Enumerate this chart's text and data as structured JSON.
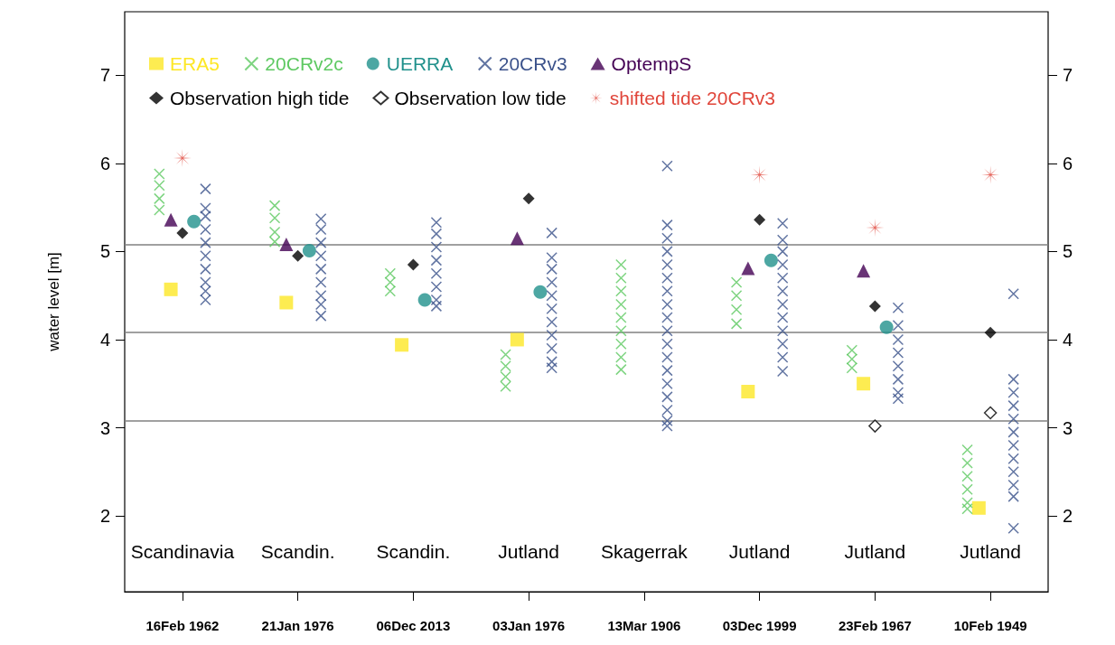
{
  "chart_data": {
    "type": "scatter",
    "ylabel": "water level [m]",
    "categories": [
      "16Feb 1962",
      "21Jan 1976",
      "06Dec 2013",
      "03Jan 1976",
      "13Mar 1906",
      "03Dec 1999",
      "23Feb 1967",
      "10Feb 1949"
    ],
    "ylim": [
      1.14,
      7.72
    ],
    "yticks": [
      2,
      3,
      4,
      5,
      6,
      7
    ],
    "y2lim": [
      1.14,
      7.72
    ],
    "y2ticks": [
      2,
      3,
      4,
      5,
      6,
      7
    ],
    "grid": false,
    "legend": "top left",
    "series": [
      {
        "name": "ERA5",
        "color": "#fde725",
        "marker": "square",
        "values": [
          4.57,
          4.42,
          3.94,
          4.0,
          null,
          3.41,
          3.5,
          2.09
        ]
      },
      {
        "name": "20CRv2c",
        "color": "#5ec962",
        "marker": "cross",
        "x": [
          "16Feb 1962",
          "16Feb 1962",
          "16Feb 1962",
          "16Feb 1962",
          "21Jan 1976",
          "21Jan 1976",
          "21Jan 1976",
          "21Jan 1976",
          "06Dec 2013",
          "06Dec 2013",
          "06Dec 2013",
          "03Jan 1976",
          "03Jan 1976",
          "03Jan 1976",
          "03Jan 1976",
          "13Mar 1906",
          "13Mar 1906",
          "13Mar 1906",
          "13Mar 1906",
          "13Mar 1906",
          "13Mar 1906",
          "13Mar 1906",
          "13Mar 1906",
          "13Mar 1906",
          "03Dec 1999",
          "03Dec 1999",
          "03Dec 1999",
          "03Dec 1999",
          "23Feb 1967",
          "23Feb 1967",
          "23Feb 1967",
          "10Feb 1949",
          "10Feb 1949",
          "10Feb 1949",
          "10Feb 1949",
          "10Feb 1949",
          "10Feb 1949"
        ],
        "values": [
          5.88,
          5.75,
          5.6,
          5.47,
          5.52,
          5.38,
          5.22,
          5.11,
          4.75,
          4.65,
          4.55,
          3.83,
          3.7,
          3.58,
          3.47,
          4.85,
          4.7,
          4.55,
          4.4,
          4.25,
          4.1,
          3.95,
          3.8,
          3.66,
          4.65,
          4.5,
          4.34,
          4.18,
          3.88,
          3.78,
          3.68,
          2.75,
          2.6,
          2.45,
          2.3,
          2.15,
          2.08
        ]
      },
      {
        "name": "UERRA",
        "color": "#21918c",
        "marker": "circle",
        "values": [
          5.34,
          5.01,
          4.45,
          4.54,
          null,
          4.9,
          4.14,
          null
        ]
      },
      {
        "name": "20CRv3",
        "color": "#3b528b",
        "marker": "cross",
        "x": [
          "16Feb 1962",
          "16Feb 1962",
          "16Feb 1962",
          "16Feb 1962",
          "16Feb 1962",
          "16Feb 1962",
          "16Feb 1962",
          "16Feb 1962",
          "16Feb 1962",
          "16Feb 1962",
          "21Jan 1976",
          "21Jan 1976",
          "21Jan 1976",
          "21Jan 1976",
          "21Jan 1976",
          "21Jan 1976",
          "21Jan 1976",
          "21Jan 1976",
          "21Jan 1976",
          "06Dec 2013",
          "06Dec 2013",
          "06Dec 2013",
          "06Dec 2013",
          "06Dec 2013",
          "06Dec 2013",
          "06Dec 2013",
          "06Dec 2013",
          "03Jan 1976",
          "03Jan 1976",
          "03Jan 1976",
          "03Jan 1976",
          "03Jan 1976",
          "03Jan 1976",
          "03Jan 1976",
          "03Jan 1976",
          "03Jan 1976",
          "03Jan 1976",
          "03Jan 1976",
          "13Mar 1906",
          "13Mar 1906",
          "13Mar 1906",
          "13Mar 1906",
          "13Mar 1906",
          "13Mar 1906",
          "13Mar 1906",
          "13Mar 1906",
          "13Mar 1906",
          "13Mar 1906",
          "13Mar 1906",
          "13Mar 1906",
          "13Mar 1906",
          "13Mar 1906",
          "13Mar 1906",
          "13Mar 1906",
          "13Mar 1906",
          "13Mar 1906",
          "03Dec 1999",
          "03Dec 1999",
          "03Dec 1999",
          "03Dec 1999",
          "03Dec 1999",
          "03Dec 1999",
          "03Dec 1999",
          "03Dec 1999",
          "03Dec 1999",
          "03Dec 1999",
          "03Dec 1999",
          "03Dec 1999",
          "23Feb 1967",
          "23Feb 1967",
          "23Feb 1967",
          "23Feb 1967",
          "23Feb 1967",
          "23Feb 1967",
          "23Feb 1967",
          "23Feb 1967",
          "10Feb 1949",
          "10Feb 1949",
          "10Feb 1949",
          "10Feb 1949",
          "10Feb 1949",
          "10Feb 1949",
          "10Feb 1949",
          "10Feb 1949",
          "10Feb 1949",
          "10Feb 1949",
          "10Feb 1949",
          "10Feb 1949"
        ],
        "values": [
          5.71,
          5.49,
          5.4,
          5.25,
          5.1,
          4.95,
          4.8,
          4.65,
          4.55,
          4.45,
          5.37,
          5.25,
          5.1,
          4.95,
          4.8,
          4.65,
          4.5,
          4.4,
          4.27,
          5.33,
          5.2,
          5.05,
          4.9,
          4.75,
          4.6,
          4.45,
          4.38,
          5.21,
          4.93,
          4.8,
          4.65,
          4.5,
          4.35,
          4.2,
          4.05,
          3.9,
          3.75,
          3.68,
          5.97,
          5.3,
          5.15,
          5.0,
          4.85,
          4.7,
          4.55,
          4.4,
          4.25,
          4.1,
          3.95,
          3.8,
          3.65,
          3.5,
          3.35,
          3.2,
          3.08,
          3.02,
          5.32,
          5.13,
          5.0,
          4.85,
          4.7,
          4.55,
          4.4,
          4.25,
          4.1,
          3.95,
          3.8,
          3.64,
          4.36,
          4.16,
          4.0,
          3.85,
          3.7,
          3.55,
          3.4,
          3.33,
          4.52,
          3.55,
          3.4,
          3.25,
          3.1,
          2.95,
          2.8,
          2.65,
          2.5,
          2.35,
          2.22,
          1.86
        ]
      },
      {
        "name": "OptempS",
        "color": "#440154",
        "marker": "triangle",
        "values": [
          5.36,
          5.08,
          null,
          5.15,
          null,
          4.81,
          4.78,
          null
        ]
      },
      {
        "name": "Observation high tide",
        "color": "#000000",
        "marker": "diamond",
        "values": [
          5.21,
          4.95,
          4.85,
          5.6,
          null,
          5.36,
          4.38,
          4.08
        ]
      },
      {
        "name": "Observation low tide",
        "color": "#ffffff",
        "marker": "diamond",
        "values": [
          null,
          null,
          null,
          null,
          null,
          null,
          3.02,
          3.17
        ]
      },
      {
        "name": "shifted tide 20CRv3",
        "color": "#e0453a",
        "marker": "star",
        "values": [
          6.06,
          null,
          null,
          null,
          null,
          5.87,
          5.27,
          5.87
        ]
      }
    ],
    "ref_lines": [
      {
        "axis": "y",
        "value": 5.08,
        "color": "#808080"
      },
      {
        "axis": "y",
        "value": 4.08,
        "color": "#808080"
      },
      {
        "axis": "y",
        "value": 3.08,
        "color": "#808080"
      }
    ],
    "annotations": [
      "Scandinavia",
      "Scandin.",
      "Scandin.",
      "Jutland",
      "Skagerrak",
      "Jutland",
      "Jutland",
      "Jutland"
    ]
  }
}
